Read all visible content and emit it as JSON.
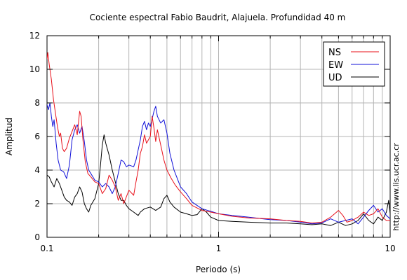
{
  "chart_data": {
    "type": "line",
    "title": "Cociente espectral Fabio Baudrit, Alajuela. Profundidad 40 m",
    "xlabel": "Periodo (s)",
    "ylabel": "Amplitud",
    "xscale": "log",
    "xlim": [
      0.1,
      10
    ],
    "ylim": [
      0,
      12
    ],
    "xticks": [
      0.1,
      1,
      10
    ],
    "xtick_labels": [
      "0.1",
      "1",
      "10"
    ],
    "yticks": [
      0,
      2,
      4,
      6,
      8,
      10,
      12
    ],
    "ytick_labels": [
      "0",
      "2",
      "4",
      "6",
      "8",
      "10",
      "12"
    ],
    "grid": true,
    "legend_position": "top-right",
    "side_note": "http://www.lis.ucr.ac.cr",
    "series": [
      {
        "name": "NS",
        "color": "#e8101a",
        "points": [
          [
            0.1,
            10.6
          ],
          [
            0.101,
            11.0
          ],
          [
            0.103,
            10.3
          ],
          [
            0.106,
            9.4
          ],
          [
            0.109,
            8.2
          ],
          [
            0.112,
            7.4
          ],
          [
            0.115,
            6.6
          ],
          [
            0.118,
            6.0
          ],
          [
            0.12,
            6.2
          ],
          [
            0.123,
            5.3
          ],
          [
            0.126,
            5.1
          ],
          [
            0.13,
            5.3
          ],
          [
            0.135,
            5.9
          ],
          [
            0.14,
            6.3
          ],
          [
            0.145,
            6.7
          ],
          [
            0.15,
            6.1
          ],
          [
            0.155,
            7.5
          ],
          [
            0.158,
            7.2
          ],
          [
            0.162,
            5.8
          ],
          [
            0.167,
            4.5
          ],
          [
            0.173,
            3.8
          ],
          [
            0.18,
            3.6
          ],
          [
            0.19,
            3.3
          ],
          [
            0.2,
            3.2
          ],
          [
            0.21,
            2.6
          ],
          [
            0.22,
            2.9
          ],
          [
            0.23,
            3.7
          ],
          [
            0.24,
            3.4
          ],
          [
            0.25,
            3.0
          ],
          [
            0.26,
            2.2
          ],
          [
            0.27,
            2.6
          ],
          [
            0.28,
            2.0
          ],
          [
            0.3,
            2.8
          ],
          [
            0.32,
            2.5
          ],
          [
            0.33,
            3.3
          ],
          [
            0.34,
            4.0
          ],
          [
            0.35,
            5.0
          ],
          [
            0.36,
            5.4
          ],
          [
            0.37,
            6.1
          ],
          [
            0.38,
            5.6
          ],
          [
            0.39,
            5.8
          ],
          [
            0.4,
            6.0
          ],
          [
            0.41,
            7.2
          ],
          [
            0.42,
            6.5
          ],
          [
            0.43,
            5.7
          ],
          [
            0.44,
            6.4
          ],
          [
            0.46,
            5.5
          ],
          [
            0.48,
            4.6
          ],
          [
            0.5,
            4.0
          ],
          [
            0.53,
            3.5
          ],
          [
            0.56,
            3.1
          ],
          [
            0.6,
            2.7
          ],
          [
            0.65,
            2.3
          ],
          [
            0.7,
            1.9
          ],
          [
            0.8,
            1.6
          ],
          [
            0.9,
            1.5
          ],
          [
            1.0,
            1.4
          ],
          [
            1.2,
            1.25
          ],
          [
            1.5,
            1.15
          ],
          [
            2.0,
            1.1
          ],
          [
            2.5,
            1.0
          ],
          [
            3.0,
            0.95
          ],
          [
            3.5,
            0.85
          ],
          [
            4.0,
            0.9
          ],
          [
            4.5,
            1.2
          ],
          [
            5.0,
            1.6
          ],
          [
            5.3,
            1.3
          ],
          [
            5.6,
            0.9
          ],
          [
            6.0,
            1.0
          ],
          [
            6.5,
            1.2
          ],
          [
            7.0,
            1.5
          ],
          [
            7.5,
            1.3
          ],
          [
            8.0,
            1.4
          ],
          [
            8.5,
            1.7
          ],
          [
            9.0,
            1.2
          ],
          [
            9.5,
            1.0
          ],
          [
            10.0,
            1.0
          ]
        ]
      },
      {
        "name": "EW",
        "color": "#1010d8",
        "points": [
          [
            0.1,
            7.9
          ],
          [
            0.102,
            7.6
          ],
          [
            0.104,
            8.0
          ],
          [
            0.106,
            7.2
          ],
          [
            0.108,
            6.6
          ],
          [
            0.11,
            7.0
          ],
          [
            0.113,
            5.6
          ],
          [
            0.116,
            4.6
          ],
          [
            0.12,
            4.0
          ],
          [
            0.125,
            3.9
          ],
          [
            0.13,
            3.5
          ],
          [
            0.135,
            4.3
          ],
          [
            0.14,
            5.8
          ],
          [
            0.145,
            6.4
          ],
          [
            0.15,
            6.7
          ],
          [
            0.155,
            6.2
          ],
          [
            0.16,
            6.6
          ],
          [
            0.165,
            5.7
          ],
          [
            0.17,
            4.6
          ],
          [
            0.175,
            4.0
          ],
          [
            0.18,
            3.8
          ],
          [
            0.19,
            3.4
          ],
          [
            0.2,
            3.3
          ],
          [
            0.21,
            3.0
          ],
          [
            0.22,
            3.2
          ],
          [
            0.23,
            3.0
          ],
          [
            0.24,
            2.6
          ],
          [
            0.25,
            3.0
          ],
          [
            0.26,
            3.8
          ],
          [
            0.27,
            4.6
          ],
          [
            0.28,
            4.5
          ],
          [
            0.29,
            4.2
          ],
          [
            0.3,
            4.3
          ],
          [
            0.32,
            4.2
          ],
          [
            0.33,
            4.6
          ],
          [
            0.34,
            5.2
          ],
          [
            0.35,
            5.8
          ],
          [
            0.36,
            6.6
          ],
          [
            0.37,
            6.9
          ],
          [
            0.38,
            6.4
          ],
          [
            0.39,
            6.8
          ],
          [
            0.4,
            6.6
          ],
          [
            0.42,
            7.5
          ],
          [
            0.43,
            7.8
          ],
          [
            0.44,
            7.2
          ],
          [
            0.46,
            6.8
          ],
          [
            0.48,
            7.0
          ],
          [
            0.5,
            6.2
          ],
          [
            0.52,
            5.0
          ],
          [
            0.55,
            4.0
          ],
          [
            0.6,
            3.0
          ],
          [
            0.65,
            2.6
          ],
          [
            0.7,
            2.1
          ],
          [
            0.8,
            1.7
          ],
          [
            0.9,
            1.55
          ],
          [
            1.0,
            1.4
          ],
          [
            1.2,
            1.3
          ],
          [
            1.5,
            1.2
          ],
          [
            2.0,
            1.05
          ],
          [
            2.5,
            1.0
          ],
          [
            3.0,
            0.9
          ],
          [
            3.5,
            0.8
          ],
          [
            4.0,
            0.85
          ],
          [
            4.5,
            1.1
          ],
          [
            5.0,
            0.9
          ],
          [
            5.5,
            1.0
          ],
          [
            6.0,
            1.1
          ],
          [
            6.5,
            0.8
          ],
          [
            7.0,
            1.2
          ],
          [
            7.5,
            1.6
          ],
          [
            8.0,
            1.9
          ],
          [
            8.5,
            1.5
          ],
          [
            9.0,
            1.7
          ],
          [
            9.5,
            1.3
          ],
          [
            10.0,
            1.1
          ]
        ]
      },
      {
        "name": "UD",
        "color": "#000000",
        "points": [
          [
            0.1,
            3.7
          ],
          [
            0.103,
            3.6
          ],
          [
            0.106,
            3.3
          ],
          [
            0.11,
            3.0
          ],
          [
            0.114,
            3.5
          ],
          [
            0.118,
            3.2
          ],
          [
            0.122,
            2.8
          ],
          [
            0.126,
            2.4
          ],
          [
            0.13,
            2.2
          ],
          [
            0.135,
            2.1
          ],
          [
            0.14,
            1.9
          ],
          [
            0.145,
            2.4
          ],
          [
            0.15,
            2.6
          ],
          [
            0.155,
            3.0
          ],
          [
            0.16,
            2.7
          ],
          [
            0.165,
            2.0
          ],
          [
            0.17,
            1.7
          ],
          [
            0.175,
            1.5
          ],
          [
            0.18,
            1.9
          ],
          [
            0.19,
            2.3
          ],
          [
            0.2,
            3.2
          ],
          [
            0.205,
            4.3
          ],
          [
            0.21,
            5.5
          ],
          [
            0.215,
            6.1
          ],
          [
            0.22,
            5.6
          ],
          [
            0.23,
            4.9
          ],
          [
            0.24,
            4.0
          ],
          [
            0.25,
            3.3
          ],
          [
            0.26,
            2.6
          ],
          [
            0.27,
            2.2
          ],
          [
            0.28,
            2.2
          ],
          [
            0.29,
            1.9
          ],
          [
            0.3,
            1.7
          ],
          [
            0.32,
            1.5
          ],
          [
            0.34,
            1.3
          ],
          [
            0.35,
            1.5
          ],
          [
            0.37,
            1.7
          ],
          [
            0.4,
            1.8
          ],
          [
            0.43,
            1.6
          ],
          [
            0.46,
            1.8
          ],
          [
            0.48,
            2.3
          ],
          [
            0.5,
            2.5
          ],
          [
            0.52,
            2.1
          ],
          [
            0.55,
            1.8
          ],
          [
            0.6,
            1.5
          ],
          [
            0.65,
            1.4
          ],
          [
            0.7,
            1.3
          ],
          [
            0.75,
            1.35
          ],
          [
            0.8,
            1.7
          ],
          [
            0.85,
            1.5
          ],
          [
            0.9,
            1.2
          ],
          [
            1.0,
            1.0
          ],
          [
            1.2,
            0.95
          ],
          [
            1.5,
            0.9
          ],
          [
            2.0,
            0.85
          ],
          [
            2.5,
            0.85
          ],
          [
            3.0,
            0.8
          ],
          [
            3.5,
            0.75
          ],
          [
            4.0,
            0.8
          ],
          [
            4.5,
            0.7
          ],
          [
            5.0,
            0.9
          ],
          [
            5.5,
            0.7
          ],
          [
            6.0,
            0.8
          ],
          [
            6.5,
            1.0
          ],
          [
            7.0,
            1.4
          ],
          [
            7.5,
            1.0
          ],
          [
            8.0,
            0.8
          ],
          [
            8.5,
            1.2
          ],
          [
            9.0,
            1.0
          ],
          [
            9.5,
            1.5
          ],
          [
            9.8,
            2.2
          ],
          [
            10.0,
            1.4
          ]
        ]
      }
    ]
  }
}
